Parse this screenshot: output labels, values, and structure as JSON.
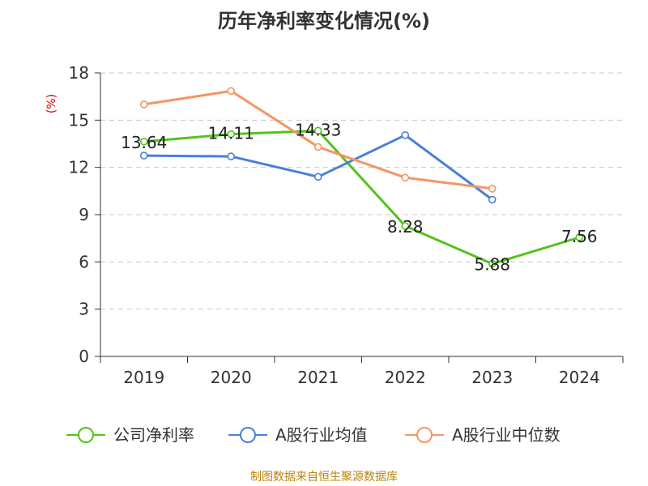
{
  "chart_data": {
    "type": "line",
    "title": "历年净利率变化情况(%)",
    "ylabel": "(%)",
    "xlabel": "",
    "categories": [
      "2019",
      "2020",
      "2021",
      "2022",
      "2023",
      "2024"
    ],
    "yticks": [
      "0",
      "3",
      "6",
      "9",
      "12",
      "15",
      "18"
    ],
    "ylim": [
      0,
      18
    ],
    "grid": true,
    "legend_position": "bottom",
    "series": [
      {
        "name": "公司净利率",
        "color": "#52c41a",
        "values": [
          13.64,
          14.11,
          14.33,
          8.28,
          5.88,
          7.56
        ],
        "labels": [
          "13.64",
          "14.11",
          "14.33",
          "8.28",
          "5.88",
          "7.56"
        ]
      },
      {
        "name": "A股行业均值",
        "color": "#4a7fd6",
        "values": [
          12.75,
          12.7,
          11.4,
          14.05,
          9.95,
          null
        ]
      },
      {
        "name": "A股行业中位数",
        "color": "#f59563",
        "values": [
          16.0,
          16.85,
          13.3,
          11.35,
          10.65,
          null
        ]
      }
    ]
  },
  "source": "制图数据来自恒生聚源数据库"
}
